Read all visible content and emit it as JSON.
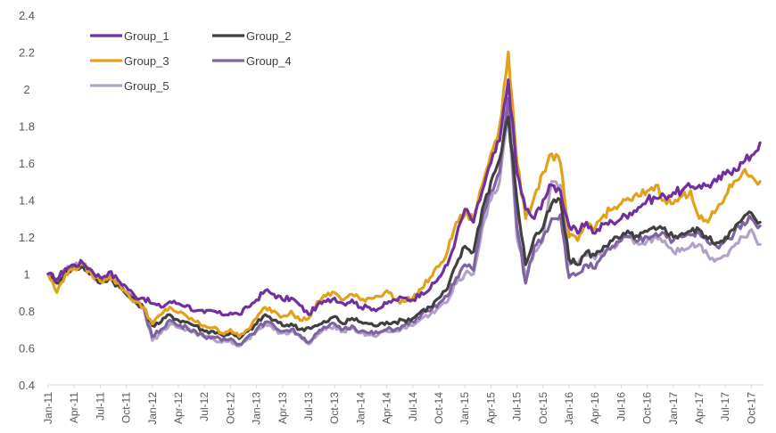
{
  "chart_data": {
    "type": "line",
    "title": "",
    "xlabel": "",
    "ylabel": "",
    "ylim": [
      0.4,
      2.4
    ],
    "yticks": [
      "0.4",
      "0.6",
      "0.8",
      "1",
      "1.2",
      "1.4",
      "1.6",
      "1.8",
      "2",
      "2.2",
      "2.4"
    ],
    "ytick_values": [
      0.4,
      0.6,
      0.8,
      1.0,
      1.2,
      1.4,
      1.6,
      1.8,
      2.0,
      2.2,
      2.4
    ],
    "grid": false,
    "legend_position": "top-left",
    "x_tick_labels": [
      "Jan-11",
      "Apr-11",
      "Jul-11",
      "Oct-11",
      "Jan-12",
      "Apr-12",
      "Jul-12",
      "Oct-12",
      "Jan-13",
      "Apr-13",
      "Jul-13",
      "Oct-13",
      "Jan-14",
      "Apr-14",
      "Jul-14",
      "Oct-14",
      "Jan-15",
      "Apr-15",
      "Jul-15",
      "Oct-15",
      "Jan-16",
      "Apr-16",
      "Jul-16",
      "Oct-16",
      "Jan-17",
      "Apr-17",
      "Jul-17",
      "Oct-17"
    ],
    "x_note": "monthly points from Jan-11 to Nov-17 (83 months)",
    "series": [
      {
        "name": "Group_1",
        "color": "#7030A0",
        "values": [
          1.0,
          0.97,
          1.03,
          1.05,
          1.06,
          1.02,
          0.98,
          1.01,
          0.97,
          0.93,
          0.88,
          0.87,
          0.84,
          0.82,
          0.85,
          0.84,
          0.83,
          0.8,
          0.79,
          0.8,
          0.78,
          0.79,
          0.78,
          0.82,
          0.86,
          0.91,
          0.89,
          0.86,
          0.87,
          0.83,
          0.78,
          0.83,
          0.85,
          0.87,
          0.84,
          0.86,
          0.82,
          0.82,
          0.81,
          0.84,
          0.86,
          0.87,
          0.86,
          0.9,
          0.92,
          0.98,
          1.05,
          1.2,
          1.35,
          1.28,
          1.45,
          1.6,
          1.72,
          2.05,
          1.55,
          1.35,
          1.3,
          1.4,
          1.48,
          1.45,
          1.26,
          1.22,
          1.28,
          1.22,
          1.27,
          1.28,
          1.3,
          1.33,
          1.36,
          1.4,
          1.41,
          1.42,
          1.44,
          1.45,
          1.47,
          1.48,
          1.48,
          1.5,
          1.54,
          1.57,
          1.6,
          1.64,
          1.71
        ]
      },
      {
        "name": "Group_2",
        "color": "#404040",
        "values": [
          1.0,
          0.95,
          1.01,
          1.03,
          1.04,
          1.0,
          0.95,
          0.98,
          0.94,
          0.89,
          0.85,
          0.82,
          0.72,
          0.74,
          0.78,
          0.75,
          0.74,
          0.72,
          0.69,
          0.69,
          0.67,
          0.68,
          0.65,
          0.69,
          0.73,
          0.78,
          0.75,
          0.72,
          0.73,
          0.7,
          0.71,
          0.72,
          0.74,
          0.77,
          0.73,
          0.76,
          0.74,
          0.73,
          0.72,
          0.74,
          0.74,
          0.75,
          0.76,
          0.8,
          0.82,
          0.87,
          0.92,
          1.05,
          1.15,
          1.12,
          1.35,
          1.5,
          1.62,
          1.85,
          1.4,
          1.05,
          1.2,
          1.25,
          1.38,
          1.4,
          1.08,
          1.05,
          1.12,
          1.1,
          1.15,
          1.18,
          1.2,
          1.22,
          1.2,
          1.23,
          1.24,
          1.25,
          1.2,
          1.22,
          1.23,
          1.24,
          1.19,
          1.17,
          1.2,
          1.24,
          1.3,
          1.33,
          1.28
        ]
      },
      {
        "name": "Group_3",
        "color": "#E2A11B",
        "values": [
          1.0,
          0.9,
          1.0,
          1.03,
          1.05,
          1.0,
          0.96,
          0.99,
          0.95,
          0.9,
          0.85,
          0.82,
          0.73,
          0.78,
          0.82,
          0.79,
          0.77,
          0.74,
          0.72,
          0.71,
          0.68,
          0.7,
          0.66,
          0.7,
          0.76,
          0.82,
          0.8,
          0.77,
          0.8,
          0.75,
          0.76,
          0.85,
          0.88,
          0.9,
          0.86,
          0.89,
          0.86,
          0.87,
          0.88,
          0.91,
          0.86,
          0.85,
          0.87,
          0.92,
          0.98,
          1.04,
          1.12,
          1.28,
          1.32,
          1.3,
          1.48,
          1.65,
          1.8,
          2.2,
          1.6,
          1.3,
          1.42,
          1.55,
          1.65,
          1.6,
          1.2,
          1.18,
          1.28,
          1.25,
          1.32,
          1.35,
          1.38,
          1.4,
          1.42,
          1.45,
          1.48,
          1.4,
          1.38,
          1.42,
          1.45,
          1.3,
          1.28,
          1.35,
          1.42,
          1.5,
          1.55,
          1.53,
          1.5
        ]
      },
      {
        "name": "Group_4",
        "color": "#8064A2",
        "values": [
          1.0,
          0.96,
          1.02,
          1.04,
          1.05,
          1.0,
          0.96,
          0.99,
          0.95,
          0.9,
          0.85,
          0.82,
          0.66,
          0.7,
          0.75,
          0.72,
          0.71,
          0.69,
          0.66,
          0.66,
          0.64,
          0.65,
          0.62,
          0.66,
          0.7,
          0.74,
          0.72,
          0.69,
          0.7,
          0.67,
          0.63,
          0.68,
          0.71,
          0.73,
          0.7,
          0.72,
          0.69,
          0.68,
          0.68,
          0.7,
          0.7,
          0.72,
          0.74,
          0.78,
          0.8,
          0.84,
          0.88,
          0.98,
          1.05,
          1.02,
          1.3,
          1.45,
          1.55,
          1.95,
          1.25,
          0.95,
          1.15,
          1.2,
          1.3,
          1.32,
          0.98,
          1.0,
          1.05,
          1.03,
          1.1,
          1.15,
          1.18,
          1.2,
          1.18,
          1.2,
          1.22,
          1.22,
          1.18,
          1.2,
          1.21,
          1.22,
          1.17,
          1.15,
          1.18,
          1.22,
          1.28,
          1.3,
          1.26
        ]
      },
      {
        "name": "Group_5",
        "color": "#B3A2C7",
        "values": [
          1.0,
          0.96,
          1.02,
          1.04,
          1.05,
          1.0,
          0.96,
          0.99,
          0.95,
          0.9,
          0.85,
          0.82,
          0.64,
          0.68,
          0.73,
          0.71,
          0.7,
          0.68,
          0.66,
          0.65,
          0.63,
          0.64,
          0.61,
          0.65,
          0.69,
          0.73,
          0.7,
          0.68,
          0.69,
          0.66,
          0.62,
          0.67,
          0.7,
          0.72,
          0.69,
          0.71,
          0.68,
          0.67,
          0.67,
          0.69,
          0.69,
          0.71,
          0.72,
          0.76,
          0.78,
          0.82,
          0.85,
          0.95,
          1.0,
          1.0,
          1.25,
          1.4,
          1.5,
          1.9,
          1.2,
          1.0,
          1.12,
          1.18,
          1.5,
          1.48,
          1.05,
          1.05,
          1.1,
          1.08,
          1.12,
          1.15,
          1.18,
          1.2,
          1.16,
          1.18,
          1.2,
          1.18,
          1.12,
          1.14,
          1.15,
          1.16,
          1.1,
          1.08,
          1.1,
          1.15,
          1.2,
          1.24,
          1.16
        ]
      }
    ]
  }
}
